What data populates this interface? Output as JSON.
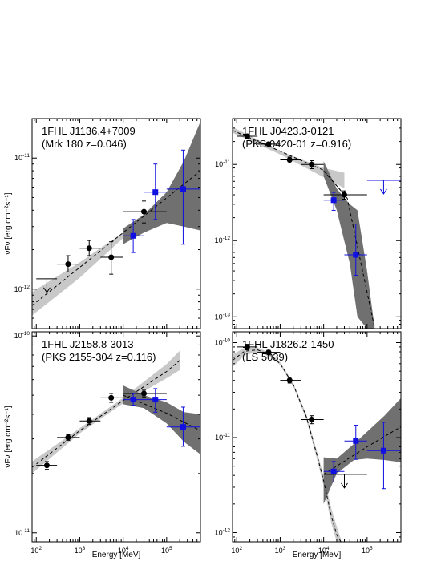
{
  "axis_text": {
    "ylabel": "νFν [erg cm⁻²s⁻¹]",
    "xlabel": "Energy [MeV]"
  },
  "colors": {
    "fermi_points": "#000000",
    "blue_points": "#1010e0",
    "band_light": "#c8c8c8",
    "band_dark": "#707070",
    "fit_line": "#000000"
  },
  "chart_data": [
    {
      "type": "scatter",
      "title": "1FHL J1136.4+7009",
      "subtitle": "(Mrk 180 z=0.046)",
      "xlabel": "",
      "ylabel": "νFν [erg cm⁻²s⁻¹]",
      "log_x": true,
      "log_y": true,
      "xlim": [
        80,
        600000
      ],
      "ylim": [
        5e-13,
        2e-11
      ],
      "x_ticks": [
        100,
        1000,
        10000,
        100000
      ],
      "y_ticks": [
        1e-12,
        1e-11
      ],
      "series": [
        {
          "marker": "circle",
          "color": "#000000",
          "points": [
            {
              "x": 540,
              "y": 1.55e-12,
              "xerr": [
                300,
                1000
              ],
              "yerr": [
                1.35e-12,
                1.8e-12
              ]
            },
            {
              "x": 1650,
              "y": 2.05e-12,
              "xerr": [
                1000,
                3000
              ],
              "yerr": [
                1.8e-12,
                2.35e-12
              ]
            },
            {
              "x": 5300,
              "y": 1.75e-12,
              "xerr": [
                3000,
                10000
              ],
              "yerr": [
                1.3e-12,
                2.3e-12
              ]
            },
            {
              "x": 30000,
              "y": 3.9e-12,
              "xerr": [
                10000,
                100000
              ],
              "yerr": [
                3.2e-12,
                4.7e-12
              ]
            }
          ]
        },
        {
          "marker": "square",
          "color": "#1010e0",
          "points": [
            {
              "x": 17000,
              "y": 2.55e-12,
              "xerr": [
                10000,
                30000
              ],
              "yerr": [
                1.9e-12,
                3.4e-12
              ]
            },
            {
              "x": 55000,
              "y": 5.5e-12,
              "xerr": [
                30000,
                100000
              ],
              "yerr": [
                3.4e-12,
                9e-12
              ]
            },
            {
              "x": 240000,
              "y": 5.8e-12,
              "xerr": [
                100000,
                600000
              ],
              "yerr": [
                2.2e-12,
                1.15e-11
              ]
            }
          ]
        }
      ],
      "upper_limits": [
        {
          "x": 175,
          "y": 1.2e-12,
          "xerr": [
            100,
            300
          ],
          "color": "#000000"
        }
      ],
      "fit_lines": [
        {
          "x": [
            80,
            600000
          ],
          "y": [
            7.5e-13,
            8e-12
          ]
        }
      ],
      "bands": [
        {
          "color": "#c8c8c8",
          "x": [
            80,
            1000,
            10000,
            100000
          ],
          "lo": [
            6.3e-13,
            1.22e-12,
            2.45e-12,
            4.7e-12
          ],
          "hi": [
            9.5e-13,
            1.6e-12,
            2.7e-12,
            4.9e-12
          ]
        },
        {
          "color": "#707070",
          "x": [
            10000,
            30000,
            100000,
            250000,
            600000
          ],
          "lo": [
            2.2e-12,
            2.7e-12,
            3.2e-12,
            3e-12,
            2.8e-12
          ],
          "hi": [
            2.9e-12,
            3.7e-12,
            5.5e-12,
            9.5e-12,
            1.9e-11
          ]
        }
      ]
    },
    {
      "type": "scatter",
      "title": "1FHL J0423.3-0121",
      "subtitle": "(PKS 0420-01 z=0.916)",
      "xlabel": "",
      "ylabel": "",
      "log_x": true,
      "log_y": true,
      "xlim": [
        80,
        600000
      ],
      "ylim": [
        7e-14,
        4e-11
      ],
      "x_ticks": [
        100,
        1000,
        10000,
        100000
      ],
      "y_ticks": [
        1e-13,
        1e-12,
        1e-11
      ],
      "series": [
        {
          "marker": "circle",
          "color": "#000000",
          "points": [
            {
              "x": 175,
              "y": 2.35e-11,
              "xerr": [
                100,
                300
              ],
              "yerr": [
                2.2e-11,
                2.5e-11
              ]
            },
            {
              "x": 540,
              "y": 1.85e-11,
              "xerr": [
                300,
                1000
              ],
              "yerr": [
                1.75e-11,
                1.95e-11
              ]
            },
            {
              "x": 1650,
              "y": 1.15e-11,
              "xerr": [
                1000,
                3000
              ],
              "yerr": [
                1.05e-11,
                1.25e-11
              ]
            },
            {
              "x": 5300,
              "y": 1e-11,
              "xerr": [
                3000,
                10000
              ],
              "yerr": [
                8.8e-12,
                1.12e-11
              ]
            },
            {
              "x": 30000,
              "y": 4e-12,
              "xerr": [
                10000,
                100000
              ],
              "yerr": [
                3.5e-12,
                4.5e-12
              ]
            }
          ]
        },
        {
          "marker": "square",
          "color": "#1010e0",
          "points": [
            {
              "x": 17000,
              "y": 3.4e-12,
              "xerr": [
                10000,
                30000
              ],
              "yerr": [
                2.5e-12,
                4.3e-12
              ]
            },
            {
              "x": 55000,
              "y": 6.5e-13,
              "xerr": [
                30000,
                100000
              ],
              "yerr": [
                3.5e-13,
                1.65e-12
              ]
            }
          ]
        }
      ],
      "upper_limits": [
        {
          "x": 240000,
          "y": 6.2e-12,
          "xerr": [
            100000,
            600000
          ],
          "color": "#1010e0"
        }
      ],
      "fit_lines": [
        {
          "x": [
            80,
            10000,
            35000,
            150000
          ],
          "y": [
            2.8e-11,
            8.4e-12,
            3.6e-12,
            7e-14
          ]
        },
        {
          "x": [
            10000,
            30000
          ],
          "y": [
            8.3e-12,
            4e-12
          ]
        }
      ],
      "bands": [
        {
          "color": "#c8c8c8",
          "x": [
            80,
            1000,
            10000,
            30000
          ],
          "lo": [
            2.6e-11,
            1.35e-11,
            6.8e-12,
            4.9e-12
          ],
          "hi": [
            3.1e-11,
            1.5e-11,
            9e-12,
            7.8e-12
          ]
        },
        {
          "color": "#707070",
          "x": [
            10000,
            20000,
            40000,
            60000,
            100000,
            150000
          ],
          "lo": [
            7e-12,
            2.5e-12,
            5e-13,
            1e-13,
            7e-14,
            7e-14
          ],
          "hi": [
            1.1e-11,
            4.8e-12,
            3e-12,
            2.5e-12,
            4e-13,
            7e-14
          ]
        }
      ]
    },
    {
      "type": "scatter",
      "title": "1FHL J2158.8-3013",
      "subtitle": "(PKS 2155-304 z=0.116)",
      "xlabel": "Energy [MeV]",
      "ylabel": "νFν [erg cm⁻²s⁻¹]",
      "log_x": true,
      "log_y": true,
      "xlim": [
        80,
        600000
      ],
      "ylim": [
        9e-12,
        1.05e-10
      ],
      "x_ticks": [
        100,
        1000,
        10000,
        100000
      ],
      "y_ticks": [
        1e-11,
        1e-10
      ],
      "series": [
        {
          "marker": "circle",
          "color": "#000000",
          "points": [
            {
              "x": 175,
              "y": 2.2e-11,
              "xerr": [
                100,
                300
              ],
              "yerr": [
                2.1e-11,
                2.3e-11
              ]
            },
            {
              "x": 540,
              "y": 3.05e-11,
              "xerr": [
                300,
                1000
              ],
              "yerr": [
                2.95e-11,
                3.15e-11
              ]
            },
            {
              "x": 1650,
              "y": 3.7e-11,
              "xerr": [
                1000,
                3000
              ],
              "yerr": [
                3.55e-11,
                3.85e-11
              ]
            },
            {
              "x": 5300,
              "y": 4.85e-11,
              "xerr": [
                3000,
                10000
              ],
              "yerr": [
                4.6e-11,
                5.1e-11
              ]
            },
            {
              "x": 30000,
              "y": 5.1e-11,
              "xerr": [
                10000,
                100000
              ],
              "yerr": [
                4.9e-11,
                5.3e-11
              ]
            }
          ]
        },
        {
          "marker": "square",
          "color": "#1010e0",
          "points": [
            {
              "x": 17000,
              "y": 4.75e-11,
              "xerr": [
                10000,
                30000
              ],
              "yerr": [
                4.45e-11,
                5.1e-11
              ]
            },
            {
              "x": 55000,
              "y": 4.75e-11,
              "xerr": [
                30000,
                100000
              ],
              "yerr": [
                4.1e-11,
                5.4e-11
              ]
            },
            {
              "x": 240000,
              "y": 3.45e-11,
              "xerr": [
                100000,
                600000
              ],
              "yerr": [
                2.75e-11,
                4.35e-11
              ]
            }
          ]
        }
      ],
      "upper_limits": [],
      "fit_lines": [
        {
          "x": [
            80,
            1000,
            10000,
            100000,
            200000
          ],
          "y": [
            2.15e-11,
            3.3e-11,
            4.7e-11,
            6.6e-11,
            7.5e-11
          ]
        },
        {
          "x": [
            10000,
            100000,
            600000
          ],
          "y": [
            5e-11,
            4.05e-11,
            3.3e-11
          ]
        }
      ],
      "bands": [
        {
          "color": "#c8c8c8",
          "x": [
            80,
            1000,
            10000,
            100000,
            200000
          ],
          "lo": [
            2e-11,
            3.2e-11,
            4.55e-11,
            6.1e-11,
            6.7e-11
          ],
          "hi": [
            2.3e-11,
            3.4e-11,
            4.85e-11,
            7.2e-11,
            8.4e-11
          ]
        },
        {
          "color": "#707070",
          "x": [
            10000,
            30000,
            100000,
            250000,
            600000
          ],
          "lo": [
            4.5e-11,
            4.3e-11,
            3.6e-11,
            2.9e-11,
            2.5e-11
          ],
          "hi": [
            5.6e-11,
            5e-11,
            4.6e-11,
            4.1e-11,
            4e-11
          ]
        }
      ]
    },
    {
      "type": "scatter",
      "title": "1FHL J1826.2-1450",
      "subtitle": "(LS 5039)",
      "xlabel": "Energy [MeV]",
      "ylabel": "",
      "log_x": true,
      "log_y": true,
      "xlim": [
        80,
        600000
      ],
      "ylim": [
        8e-13,
        1.3e-10
      ],
      "x_ticks": [
        100,
        1000,
        10000,
        100000
      ],
      "y_ticks": [
        1e-12,
        1e-11,
        1e-10
      ],
      "series": [
        {
          "marker": "circle",
          "color": "#000000",
          "points": [
            {
              "x": 175,
              "y": 9e-11,
              "xerr": [
                100,
                300
              ],
              "yerr": [
                8.4e-11,
                9.6e-11
              ]
            },
            {
              "x": 540,
              "y": 7.9e-11,
              "xerr": [
                300,
                1000
              ],
              "yerr": [
                7.5e-11,
                8.3e-11
              ]
            },
            {
              "x": 1650,
              "y": 4e-11,
              "xerr": [
                1000,
                3000
              ],
              "yerr": [
                3.75e-11,
                4.3e-11
              ]
            },
            {
              "x": 5300,
              "y": 1.55e-11,
              "xerr": [
                3000,
                10000
              ],
              "yerr": [
                1.4e-11,
                1.7e-11
              ]
            }
          ]
        },
        {
          "marker": "square",
          "color": "#1010e0",
          "points": [
            {
              "x": 17000,
              "y": 4.4e-12,
              "xerr": [
                10000,
                30000
              ],
              "yerr": [
                3.4e-12,
                5.6e-12
              ]
            },
            {
              "x": 55000,
              "y": 9.2e-12,
              "xerr": [
                30000,
                100000
              ],
              "yerr": [
                5.9e-12,
                1.35e-11
              ]
            },
            {
              "x": 240000,
              "y": 7.3e-12,
              "xerr": [
                100000,
                600000
              ],
              "yerr": [
                2.9e-12,
                1.45e-11
              ]
            }
          ]
        }
      ],
      "upper_limits": [
        {
          "x": 30000,
          "y": 4.1e-12,
          "xerr": [
            10000,
            100000
          ],
          "color": "#000000"
        }
      ],
      "fit_lines": [
        {
          "x": [
            80,
            150,
            300,
            600,
            1000,
            2000,
            4000,
            7000,
            10000,
            15000,
            20000,
            25000
          ],
          "y": [
            6.5e-11,
            8.1e-11,
            8.4e-11,
            7.4e-11,
            6e-11,
            3.6e-11,
            1.65e-11,
            6.6e-12,
            3.5e-12,
            1.5e-12,
            9.5e-13,
            8e-13
          ]
        },
        {
          "x": [
            10000,
            100000,
            600000
          ],
          "y": [
            4.1e-12,
            8e-12,
            1.3e-11
          ]
        }
      ],
      "bands": [
        {
          "color": "#c8c8c8",
          "x": [
            80,
            150,
            300,
            600,
            1000,
            2000,
            4000,
            7000,
            10000,
            15000,
            20000,
            25000
          ],
          "lo": [
            5.5e-11,
            7.4e-11,
            7.9e-11,
            7.1e-11,
            5.8e-11,
            3.45e-11,
            1.55e-11,
            6e-12,
            3.1e-12,
            1.25e-12,
            8e-13,
            8e-13
          ],
          "hi": [
            7.5e-11,
            8.8e-11,
            8.9e-11,
            7.7e-11,
            6.2e-11,
            3.75e-11,
            1.75e-11,
            7.2e-12,
            3.9e-12,
            1.8e-12,
            1.15e-12,
            8.5e-13
          ]
        },
        {
          "color": "#707070",
          "x": [
            10000,
            20000,
            50000,
            100000,
            250000,
            600000
          ],
          "lo": [
            2e-12,
            4.2e-12,
            5.8e-12,
            6e-12,
            5.8e-12,
            5.5e-12
          ],
          "hi": [
            6.2e-12,
            6e-12,
            8.6e-12,
            1.15e-11,
            1.7e-11,
            2.6e-11
          ]
        }
      ]
    }
  ]
}
